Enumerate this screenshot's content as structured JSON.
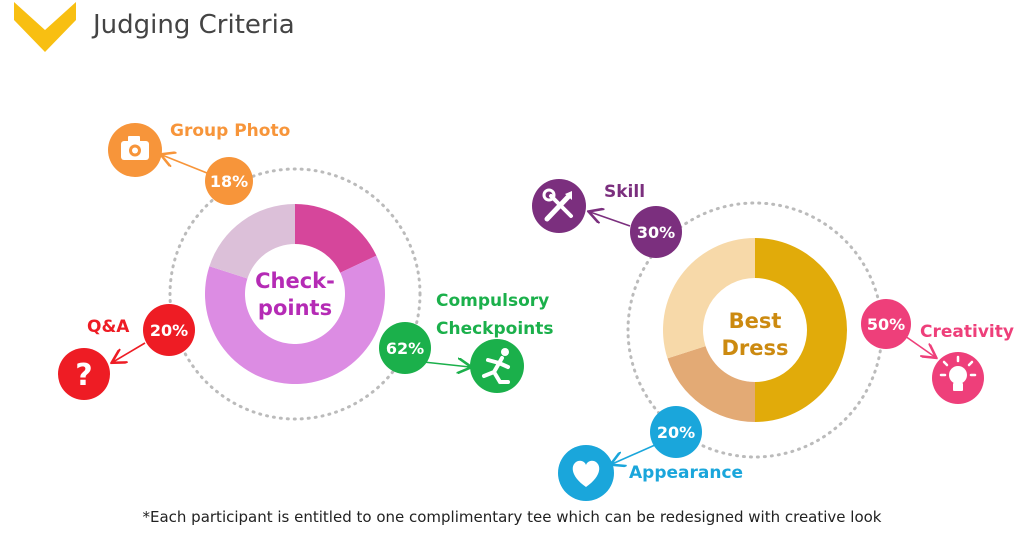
{
  "header": {
    "title": "Judging Criteria"
  },
  "footnote": "*Each participant is entitled to one complimentary tee which can be redesigned with creative look",
  "chart_data": [
    {
      "type": "pie",
      "title": "Check-\npoints",
      "center_lines": [
        "Check-",
        "points"
      ],
      "center_color": "#b52bb5",
      "slices": [
        {
          "label": "Group Photo",
          "value": 18,
          "display": "18%",
          "color": "#d6469b",
          "badge_color": "#f7953a",
          "icon": "camera-icon",
          "icon_color": "#f7953a"
        },
        {
          "label": "Compulsory Checkpoints",
          "value": 62,
          "display": "62%",
          "color": "#dc8ce3",
          "badge_color": "#1bb04b",
          "icon": "running-man-icon",
          "icon_color": "#1bb04b"
        },
        {
          "label": "Q&A",
          "value": 20,
          "display": "20%",
          "color": "#dcc0d9",
          "badge_color": "#ee1c24",
          "icon": "question-mark-icon",
          "icon_color": "#ee1c24"
        }
      ]
    },
    {
      "type": "pie",
      "title": "Best\nDress",
      "center_lines": [
        "Best",
        "Dress"
      ],
      "center_color": "#cc8a10",
      "slices": [
        {
          "label": "Creativity",
          "value": 50,
          "display": "50%",
          "color": "#e1ab0a",
          "badge_color": "#ee3f7a",
          "icon": "lightbulb-icon",
          "icon_color": "#ee3f7a"
        },
        {
          "label": "Appearance",
          "value": 20,
          "display": "20%",
          "color": "#e3aa75",
          "badge_color": "#1aa6db",
          "icon": "heart-icon",
          "icon_color": "#1aa6db"
        },
        {
          "label": "Skill",
          "value": 30,
          "display": "30%",
          "color": "#f7d9a9",
          "badge_color": "#7b2f7e",
          "icon": "tools-icon",
          "icon_color": "#7b2f7e"
        }
      ]
    }
  ]
}
